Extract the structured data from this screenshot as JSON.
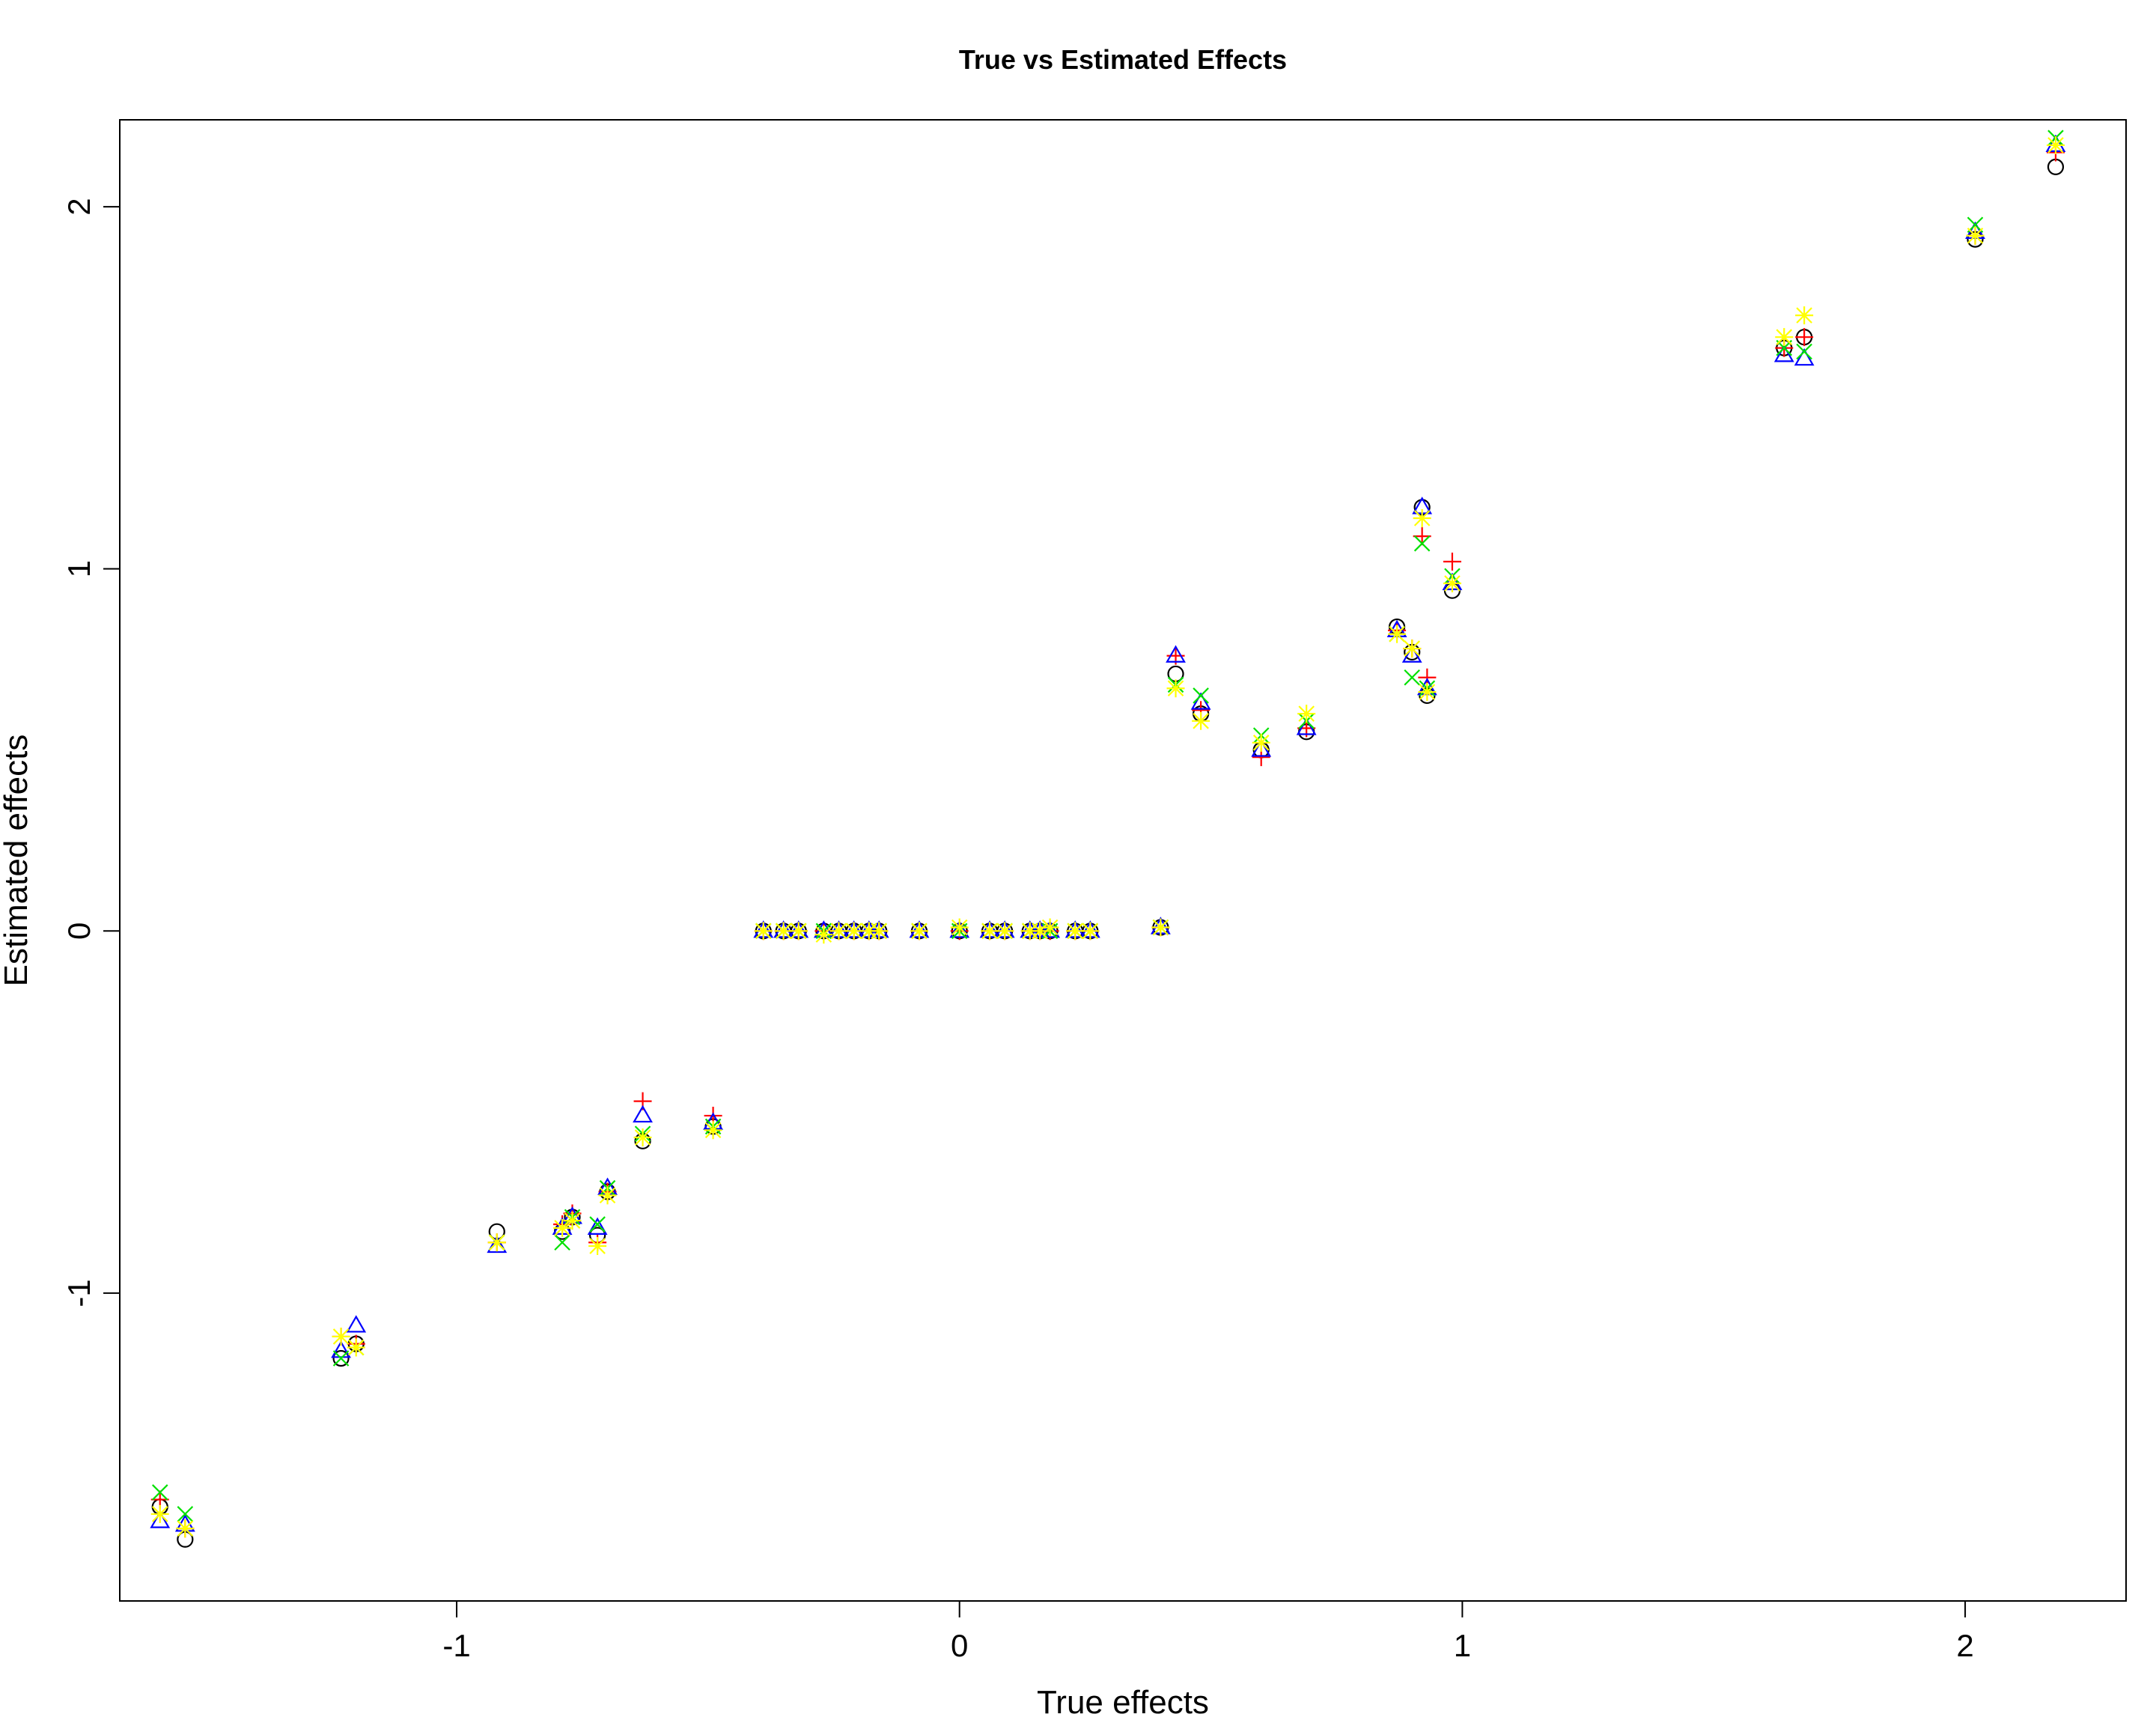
{
  "chart_data": {
    "type": "scatter",
    "title": "True vs Estimated Effects",
    "xlabel": "True effects",
    "ylabel": "Estimated effects",
    "xlim": [
      -1.67,
      2.32
    ],
    "ylim": [
      -1.85,
      2.24
    ],
    "xticks": [
      -1,
      0,
      1,
      2
    ],
    "yticks": [
      -1,
      0,
      1,
      2
    ],
    "grid": false,
    "legend": "none",
    "series": [
      {
        "marker": "circle",
        "color": "#000000",
        "points": [
          [
            -1.59,
            -1.59
          ],
          [
            -1.54,
            -1.68
          ],
          [
            -1.23,
            -1.18
          ],
          [
            -1.2,
            -1.14
          ],
          [
            -0.92,
            -0.83
          ],
          [
            -0.79,
            -0.83
          ],
          [
            -0.77,
            -0.79
          ],
          [
            -0.72,
            -0.84
          ],
          [
            -0.7,
            -0.72
          ],
          [
            -0.63,
            -0.58
          ],
          [
            -0.49,
            -0.54
          ],
          [
            -0.39,
            0.0
          ],
          [
            -0.35,
            0.0
          ],
          [
            -0.32,
            0.0
          ],
          [
            -0.27,
            0.0
          ],
          [
            -0.24,
            0.0
          ],
          [
            -0.21,
            0.0
          ],
          [
            -0.18,
            0.0
          ],
          [
            -0.16,
            0.0
          ],
          [
            -0.08,
            0.0
          ],
          [
            0.0,
            0.0
          ],
          [
            0.06,
            0.0
          ],
          [
            0.09,
            0.0
          ],
          [
            0.14,
            0.0
          ],
          [
            0.16,
            0.0
          ],
          [
            0.18,
            0.0
          ],
          [
            0.23,
            0.0
          ],
          [
            0.26,
            0.0
          ],
          [
            0.4,
            0.01
          ],
          [
            0.43,
            0.71
          ],
          [
            0.48,
            0.6
          ],
          [
            0.6,
            0.5
          ],
          [
            0.69,
            0.55
          ],
          [
            0.87,
            0.84
          ],
          [
            0.9,
            0.77
          ],
          [
            0.92,
            1.17
          ],
          [
            0.93,
            0.65
          ],
          [
            0.98,
            0.94
          ],
          [
            1.64,
            1.61
          ],
          [
            1.68,
            1.64
          ],
          [
            2.02,
            1.91
          ],
          [
            2.18,
            2.11
          ]
        ]
      },
      {
        "marker": "plus",
        "color": "#ff0000",
        "points": [
          [
            -1.59,
            -1.57
          ],
          [
            -1.54,
            -1.65
          ],
          [
            -1.23,
            -1.12
          ],
          [
            -1.2,
            -1.14
          ],
          [
            -0.92,
            -0.86
          ],
          [
            -0.79,
            -0.81
          ],
          [
            -0.77,
            -0.78
          ],
          [
            -0.72,
            -0.86
          ],
          [
            -0.7,
            -0.72
          ],
          [
            -0.63,
            -0.47
          ],
          [
            -0.49,
            -0.51
          ],
          [
            -0.39,
            0.0
          ],
          [
            -0.35,
            0.0
          ],
          [
            -0.32,
            0.0
          ],
          [
            -0.27,
            0.0
          ],
          [
            -0.24,
            0.0
          ],
          [
            -0.21,
            0.0
          ],
          [
            -0.18,
            0.0
          ],
          [
            -0.16,
            0.0
          ],
          [
            -0.08,
            0.0
          ],
          [
            0.0,
            0.0
          ],
          [
            0.06,
            0.0
          ],
          [
            0.09,
            0.0
          ],
          [
            0.14,
            0.0
          ],
          [
            0.16,
            0.0
          ],
          [
            0.18,
            0.0
          ],
          [
            0.23,
            0.0
          ],
          [
            0.26,
            0.0
          ],
          [
            0.4,
            0.01
          ],
          [
            0.43,
            0.76
          ],
          [
            0.48,
            0.61
          ],
          [
            0.6,
            0.48
          ],
          [
            0.69,
            0.56
          ],
          [
            0.87,
            0.83
          ],
          [
            0.9,
            0.78
          ],
          [
            0.92,
            1.09
          ],
          [
            0.93,
            0.7
          ],
          [
            0.98,
            1.02
          ],
          [
            1.64,
            1.61
          ],
          [
            1.68,
            1.64
          ],
          [
            2.02,
            1.92
          ],
          [
            2.18,
            2.15
          ]
        ]
      },
      {
        "marker": "triangle",
        "color": "#0000ff",
        "points": [
          [
            -1.59,
            -1.63
          ],
          [
            -1.54,
            -1.64
          ],
          [
            -1.23,
            -1.16
          ],
          [
            -1.2,
            -1.09
          ],
          [
            -0.92,
            -0.87
          ],
          [
            -0.79,
            -0.82
          ],
          [
            -0.77,
            -0.79
          ],
          [
            -0.72,
            -0.82
          ],
          [
            -0.7,
            -0.71
          ],
          [
            -0.63,
            -0.51
          ],
          [
            -0.49,
            -0.53
          ],
          [
            -0.39,
            0.0
          ],
          [
            -0.35,
            0.0
          ],
          [
            -0.32,
            0.0
          ],
          [
            -0.27,
            0.0
          ],
          [
            -0.24,
            0.0
          ],
          [
            -0.21,
            0.0
          ],
          [
            -0.18,
            0.0
          ],
          [
            -0.16,
            0.0
          ],
          [
            -0.08,
            0.0
          ],
          [
            0.0,
            0.0
          ],
          [
            0.06,
            0.0
          ],
          [
            0.09,
            0.0
          ],
          [
            0.14,
            0.0
          ],
          [
            0.16,
            0.0
          ],
          [
            0.18,
            0.0
          ],
          [
            0.23,
            0.0
          ],
          [
            0.26,
            0.0
          ],
          [
            0.4,
            0.01
          ],
          [
            0.43,
            0.76
          ],
          [
            0.48,
            0.63
          ],
          [
            0.6,
            0.5
          ],
          [
            0.69,
            0.56
          ],
          [
            0.87,
            0.83
          ],
          [
            0.9,
            0.76
          ],
          [
            0.92,
            1.17
          ],
          [
            0.93,
            0.67
          ],
          [
            0.98,
            0.96
          ],
          [
            1.64,
            1.59
          ],
          [
            1.68,
            1.58
          ],
          [
            2.02,
            1.93
          ],
          [
            2.18,
            2.17
          ]
        ]
      },
      {
        "marker": "cross",
        "color": "#00e000",
        "points": [
          [
            -1.59,
            -1.55
          ],
          [
            -1.54,
            -1.61
          ],
          [
            -1.23,
            -1.18
          ],
          [
            -1.2,
            -1.15
          ],
          [
            -0.92,
            -0.86
          ],
          [
            -0.79,
            -0.86
          ],
          [
            -0.77,
            -0.79
          ],
          [
            -0.72,
            -0.81
          ],
          [
            -0.7,
            -0.71
          ],
          [
            -0.63,
            -0.56
          ],
          [
            -0.49,
            -0.54
          ],
          [
            -0.39,
            0.0
          ],
          [
            -0.35,
            0.0
          ],
          [
            -0.32,
            0.0
          ],
          [
            -0.27,
            0.0
          ],
          [
            -0.24,
            0.0
          ],
          [
            -0.21,
            0.0
          ],
          [
            -0.18,
            0.0
          ],
          [
            -0.16,
            0.0
          ],
          [
            -0.08,
            0.0
          ],
          [
            0.0,
            0.0
          ],
          [
            0.06,
            0.0
          ],
          [
            0.09,
            0.0
          ],
          [
            0.14,
            0.0
          ],
          [
            0.16,
            0.0
          ],
          [
            0.18,
            0.0
          ],
          [
            0.23,
            0.0
          ],
          [
            0.26,
            0.0
          ],
          [
            0.4,
            0.01
          ],
          [
            0.43,
            0.68
          ],
          [
            0.48,
            0.65
          ],
          [
            0.6,
            0.54
          ],
          [
            0.69,
            0.58
          ],
          [
            0.87,
            0.82
          ],
          [
            0.9,
            0.7
          ],
          [
            0.92,
            1.07
          ],
          [
            0.93,
            0.67
          ],
          [
            0.98,
            0.98
          ],
          [
            1.64,
            1.61
          ],
          [
            1.68,
            1.6
          ],
          [
            2.02,
            1.95
          ],
          [
            2.18,
            2.19
          ]
        ]
      },
      {
        "marker": "asterisk",
        "color": "#ffff00",
        "points": [
          [
            -1.59,
            -1.61
          ],
          [
            -1.54,
            -1.65
          ],
          [
            -1.23,
            -1.12
          ],
          [
            -1.2,
            -1.15
          ],
          [
            -0.92,
            -0.86
          ],
          [
            -0.79,
            -0.82
          ],
          [
            -0.77,
            -0.8
          ],
          [
            -0.72,
            -0.87
          ],
          [
            -0.7,
            -0.73
          ],
          [
            -0.63,
            -0.57
          ],
          [
            -0.49,
            -0.55
          ],
          [
            -0.39,
            0.0
          ],
          [
            -0.35,
            0.0
          ],
          [
            -0.32,
            0.0
          ],
          [
            -0.27,
            -0.01
          ],
          [
            -0.24,
            0.0
          ],
          [
            -0.21,
            0.0
          ],
          [
            -0.18,
            0.0
          ],
          [
            -0.16,
            0.0
          ],
          [
            -0.08,
            0.0
          ],
          [
            0.0,
            0.01
          ],
          [
            0.06,
            0.0
          ],
          [
            0.09,
            0.0
          ],
          [
            0.14,
            0.0
          ],
          [
            0.16,
            0.0
          ],
          [
            0.18,
            0.01
          ],
          [
            0.23,
            0.0
          ],
          [
            0.26,
            0.0
          ],
          [
            0.4,
            0.01
          ],
          [
            0.43,
            0.67
          ],
          [
            0.48,
            0.58
          ],
          [
            0.6,
            0.52
          ],
          [
            0.69,
            0.6
          ],
          [
            0.87,
            0.82
          ],
          [
            0.9,
            0.78
          ],
          [
            0.92,
            1.14
          ],
          [
            0.93,
            0.66
          ],
          [
            0.98,
            0.96
          ],
          [
            1.64,
            1.64
          ],
          [
            1.68,
            1.7
          ],
          [
            2.02,
            1.92
          ],
          [
            2.18,
            2.17
          ]
        ]
      }
    ]
  }
}
